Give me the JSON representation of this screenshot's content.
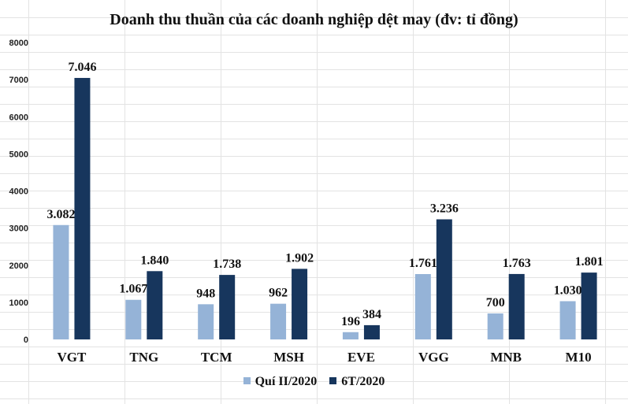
{
  "chart_data": {
    "type": "bar",
    "title": "Doanh thu thuần của các doanh nghiệp dệt may (đv: tỉ đồng)",
    "xlabel": "",
    "ylabel": "",
    "categories": [
      "VGT",
      "TNG",
      "TCM",
      "MSH",
      "EVE",
      "VGG",
      "MNB",
      "M10"
    ],
    "series": [
      {
        "name": "Quí II/2020",
        "color": "#95B3D7",
        "values": [
          3082,
          1067,
          948,
          962,
          196,
          1761,
          700,
          1030
        ],
        "labels": [
          "3.082",
          "1.067",
          "948",
          "962",
          "196",
          "1.761",
          "700",
          "1.030"
        ]
      },
      {
        "name": "6T/2020",
        "color": "#17365D",
        "values": [
          7046,
          1840,
          1738,
          1902,
          384,
          3236,
          1763,
          1801
        ],
        "labels": [
          "7.046",
          "1.840",
          "1.738",
          "1.902",
          "384",
          "3.236",
          "1.763",
          "1.801"
        ]
      }
    ],
    "ylim": [
      0,
      8000
    ],
    "yticks": [
      "0",
      "1000",
      "2000",
      "3000",
      "4000",
      "5000",
      "6000",
      "7000",
      "8000"
    ],
    "legend_position": "bottom",
    "grid": false
  }
}
